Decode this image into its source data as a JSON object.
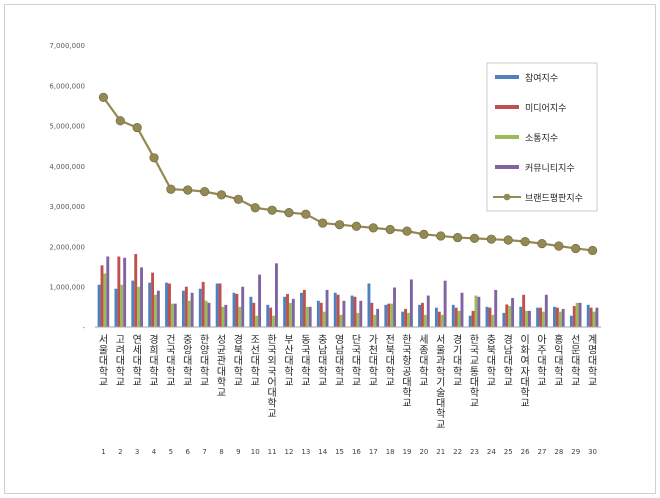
{
  "chart_data": {
    "type": "bar",
    "title": "",
    "xlabel": "",
    "ylabel": "",
    "ylim": [
      0,
      7000000
    ],
    "y_ticks": [
      "-",
      "1,000,000",
      "2,000,000",
      "3,000,000",
      "4,000,000",
      "5,000,000",
      "6,000,000",
      "7,000,000"
    ],
    "grid": false,
    "legend_position": "right",
    "categories": [
      "서울대학교",
      "고려대학교",
      "연세대학교",
      "경희대학교",
      "건국대학교",
      "중앙대학교",
      "한양대학교",
      "성균관대학교",
      "경북대학교",
      "조선대학교",
      "한국외국어대학교",
      "부산대학교",
      "동국대학교",
      "충남대학교",
      "영남대학교",
      "단국대학교",
      "가천대학교",
      "전북대학교",
      "한국항공대학교",
      "세종대학교",
      "서울과학기술대학교",
      "경기대학교",
      "한국교통대학교",
      "충북대학교",
      "경남대학교",
      "이화여자대학교",
      "아주대학교",
      "홍익대학교",
      "선문대학교",
      "계명대학교"
    ],
    "ranks": [
      "1",
      "2",
      "3",
      "4",
      "5",
      "6",
      "7",
      "8",
      "9",
      "10",
      "11",
      "12",
      "13",
      "14",
      "15",
      "16",
      "17",
      "18",
      "19",
      "20",
      "21",
      "22",
      "23",
      "24",
      "25",
      "26",
      "27",
      "28",
      "29",
      "30"
    ],
    "series": [
      {
        "name": "참여지수",
        "kind": "bar",
        "color": "#4f81bd",
        "values": [
          1050000,
          950000,
          1150000,
          1100000,
          1100000,
          900000,
          950000,
          1080000,
          850000,
          750000,
          550000,
          750000,
          850000,
          650000,
          850000,
          780000,
          1080000,
          550000,
          380000,
          550000,
          480000,
          550000,
          280000,
          500000,
          350000,
          500000,
          480000,
          500000,
          280000,
          550000
        ]
      },
      {
        "name": "미디어지수",
        "kind": "bar",
        "color": "#c0504d",
        "values": [
          1530000,
          1750000,
          1810000,
          1350000,
          1080000,
          1000000,
          1120000,
          1080000,
          820000,
          600000,
          480000,
          820000,
          920000,
          600000,
          800000,
          750000,
          600000,
          580000,
          450000,
          600000,
          380000,
          480000,
          400000,
          480000,
          560000,
          800000,
          480000,
          480000,
          520000,
          480000
        ]
      },
      {
        "name": "소통지수",
        "kind": "bar",
        "color": "#9bbb59",
        "values": [
          1330000,
          1050000,
          1000000,
          800000,
          580000,
          650000,
          650000,
          500000,
          500000,
          280000,
          280000,
          600000,
          500000,
          380000,
          300000,
          350000,
          300000,
          580000,
          350000,
          300000,
          300000,
          400000,
          780000,
          300000,
          520000,
          400000,
          380000,
          380000,
          600000,
          380000
        ]
      },
      {
        "name": "커뮤니티지수",
        "kind": "bar",
        "color": "#8064a2",
        "values": [
          1750000,
          1720000,
          1480000,
          900000,
          580000,
          850000,
          600000,
          550000,
          1000000,
          1300000,
          1580000,
          700000,
          500000,
          920000,
          650000,
          650000,
          450000,
          980000,
          1180000,
          780000,
          1150000,
          850000,
          750000,
          920000,
          720000,
          400000,
          800000,
          450000,
          600000,
          480000
        ]
      },
      {
        "name": "브랜드평판지수",
        "kind": "line",
        "color": "#938953",
        "values": [
          5700000,
          5120000,
          4950000,
          4200000,
          3420000,
          3400000,
          3360000,
          3280000,
          3170000,
          2960000,
          2900000,
          2840000,
          2800000,
          2580000,
          2540000,
          2500000,
          2460000,
          2420000,
          2380000,
          2300000,
          2260000,
          2220000,
          2200000,
          2180000,
          2160000,
          2120000,
          2070000,
          2010000,
          1950000,
          1900000
        ]
      }
    ]
  }
}
